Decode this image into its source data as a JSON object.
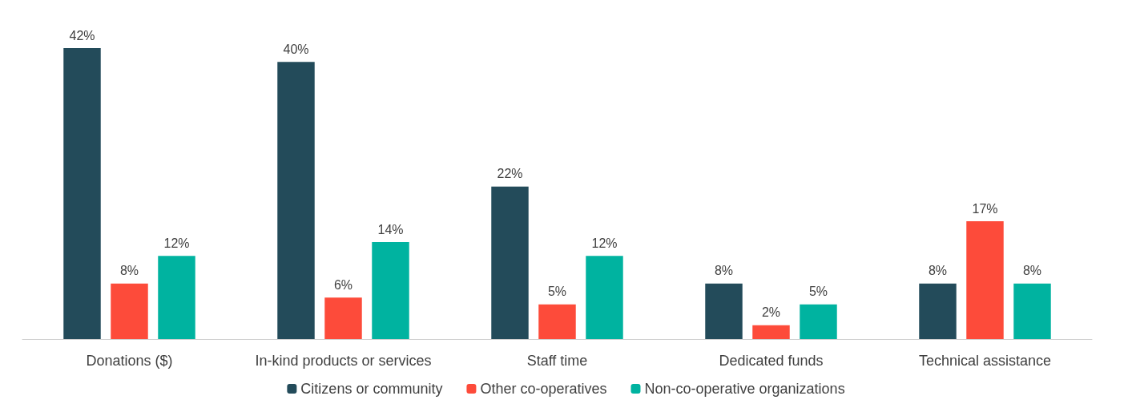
{
  "chart_data": {
    "type": "bar",
    "categories": [
      "Donations ($)",
      "In-kind products or services",
      "Staff time",
      "Dedicated funds",
      "Technical assistance"
    ],
    "series": [
      {
        "name": "Citizens or community",
        "color": "#234b5a",
        "values": [
          42,
          40,
          22,
          8,
          8
        ],
        "value_labels": [
          "42%",
          "40%",
          "22%",
          "8%",
          "8%"
        ]
      },
      {
        "name": "Other co-operatives",
        "color": "#fd4b3a",
        "values": [
          8,
          6,
          5,
          2,
          17
        ],
        "value_labels": [
          "8%",
          "6%",
          "5%",
          "2%",
          "17%"
        ]
      },
      {
        "name": "Non-co-operative organizations",
        "color": "#00b3a0",
        "values": [
          12,
          14,
          12,
          5,
          8
        ],
        "value_labels": [
          "12%",
          "14%",
          "12%",
          "5%",
          "8%"
        ]
      }
    ],
    "legend": "bottom"
  }
}
